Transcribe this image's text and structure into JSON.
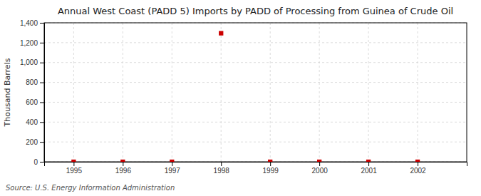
{
  "chart_data": {
    "type": "scatter",
    "title": "Annual West Coast (PADD 5) Imports by PADD of Processing from Guinea of Crude Oil",
    "y_label": "Thousand Barrels",
    "annotations": [
      "Source: U.S. Energy Information Administration"
    ],
    "x": [
      1995,
      1996,
      1997,
      1998,
      1999,
      2000,
      2001,
      2002
    ],
    "values": [
      0,
      0,
      0,
      1295,
      0,
      0,
      0,
      0
    ],
    "color": "#cc0000",
    "marker": "square",
    "xlim": [
      1994.4,
      2003.0
    ],
    "xticks": [
      1995,
      1996,
      1997,
      1998,
      1999,
      2000,
      2001,
      2002
    ],
    "ylim": [
      0,
      1400
    ],
    "yticks": [
      0,
      200,
      400,
      600,
      800,
      {
        "value": 1000,
        "label": "1,000"
      },
      {
        "value": 1200,
        "label": "1,200"
      },
      {
        "value": 1400,
        "label": "1,400"
      }
    ],
    "grid": true
  }
}
